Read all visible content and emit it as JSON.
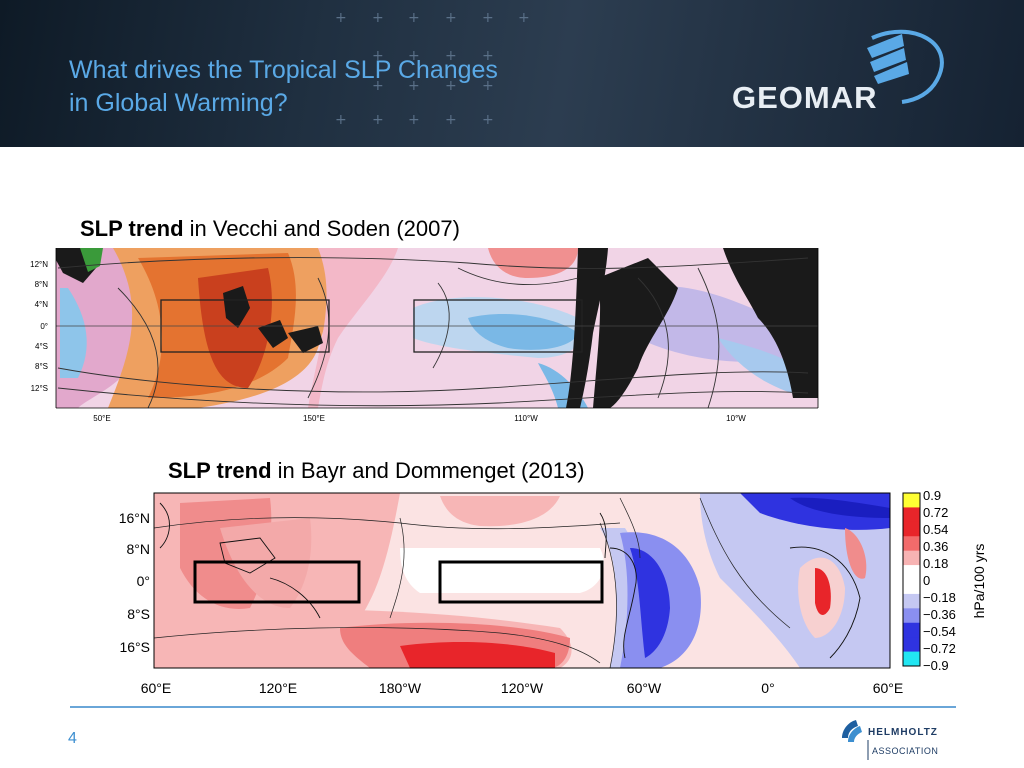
{
  "header": {
    "title_line1": "What drives the Tropical SLP Changes",
    "title_line2": "in Global Warming?",
    "logo_text": "GEOMAR"
  },
  "figure1": {
    "caption_bold": "SLP trend",
    "caption_rest": " in Vecchi and Soden (2007)",
    "lat_labels": [
      "12°N",
      "8°N",
      "4°N",
      "0°",
      "4°S",
      "8°S",
      "12°S"
    ],
    "lon_labels": [
      "50°E",
      "150°E",
      "110°W",
      "10°W"
    ]
  },
  "figure2": {
    "caption_bold": "SLP trend",
    "caption_rest": " in Bayr and Dommenget (2013)",
    "lat_labels": [
      "16°N",
      "8°N",
      "0°",
      "8°S",
      "16°S"
    ],
    "lon_labels": [
      "60°E",
      "120°E",
      "180°W",
      "120°W",
      "60°W",
      "0°",
      "60°E"
    ],
    "colorbar_ticks": [
      "0.9",
      "0.72",
      "0.54",
      "0.36",
      "0.18",
      "0",
      "−0.18",
      "−0.36",
      "−0.54",
      "−0.72",
      "−0.9"
    ],
    "colorbar_label": "hPa/100 yrs",
    "colors": {
      "pos_max": "#ffff33",
      "pos_hi": "#e8252a",
      "pos_mid": "#f26b6b",
      "pos_lo": "#f7b3b3",
      "neutral": "#ffffff",
      "neg_lo": "#c5c8f2",
      "neg_mid": "#8a8ff0",
      "neg_hi": "#2f33e0",
      "neg_max": "#22e6f2"
    }
  },
  "footer": {
    "page_number": "4",
    "helmholtz_line1": "HELMHOLTZ",
    "helmholtz_line2": "ASSOCIATION"
  }
}
